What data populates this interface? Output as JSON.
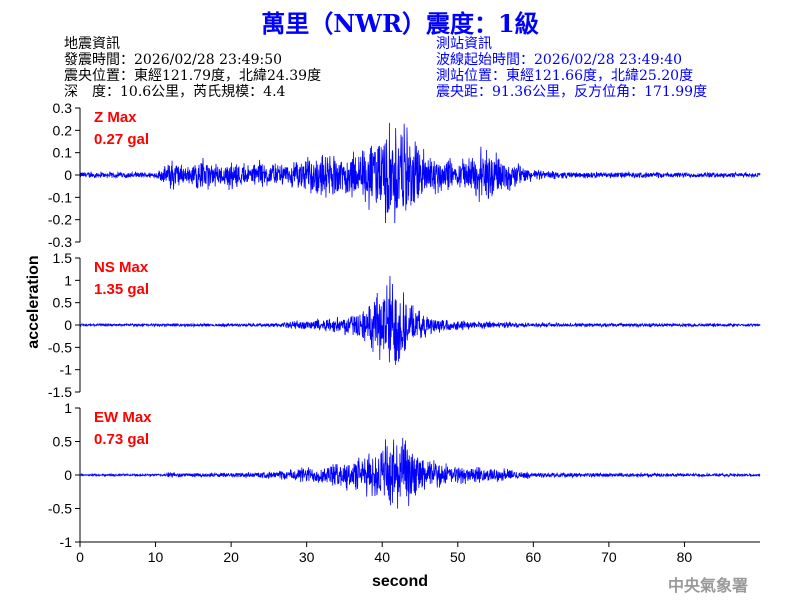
{
  "title": "萬里（NWR）震度：1級",
  "quake_info": {
    "heading": "地震資訊",
    "time": "發震時間：2026/02/28 23:49:50",
    "location": "震央位置：東經121.79度，北緯24.39度",
    "depth_magnitude": "深　度：10.6公里，芮氏規模：4.4"
  },
  "station_info": {
    "heading": "測站資訊",
    "wave_start": "波線起始時間：2026/02/28 23:49:40",
    "location": "測站位置：東經121.66度，北緯25.20度",
    "distance_azimuth": "震央距：91.36公里，反方位角：171.99度"
  },
  "agency": "中央氣象署",
  "chart_data": {
    "type": "line",
    "xlabel": "second",
    "ylabel": "acceleration",
    "xlim": [
      0,
      90
    ],
    "xticks": [
      0,
      10,
      20,
      30,
      40,
      50,
      60,
      70,
      80
    ],
    "line_color": "#0000ff",
    "label_color": "#ff0000",
    "panels": [
      {
        "name": "Z Max",
        "max_label": "0.27 gal",
        "ylim": [
          -0.3,
          0.3
        ],
        "yticks": [
          -0.3,
          -0.2,
          -0.1,
          0,
          0.1,
          0.2,
          0.3
        ],
        "envelope": [
          [
            0,
            0.015
          ],
          [
            10,
            0.015
          ],
          [
            11.5,
            0.05
          ],
          [
            12,
            0.09
          ],
          [
            14,
            0.04
          ],
          [
            16,
            0.08
          ],
          [
            18,
            0.05
          ],
          [
            20,
            0.07
          ],
          [
            22,
            0.05
          ],
          [
            24,
            0.07
          ],
          [
            26,
            0.05
          ],
          [
            28,
            0.06
          ],
          [
            30,
            0.09
          ],
          [
            33,
            0.11
          ],
          [
            36,
            0.1
          ],
          [
            38,
            0.15
          ],
          [
            40,
            0.2
          ],
          [
            42,
            0.27
          ],
          [
            44,
            0.18
          ],
          [
            46,
            0.12
          ],
          [
            48,
            0.09
          ],
          [
            50,
            0.06
          ],
          [
            52,
            0.1
          ],
          [
            54,
            0.15
          ],
          [
            56,
            0.08
          ],
          [
            58,
            0.06
          ],
          [
            60,
            0.025
          ],
          [
            65,
            0.015
          ],
          [
            90,
            0.012
          ]
        ]
      },
      {
        "name": "NS Max",
        "max_label": "1.35 gal",
        "ylim": [
          -1.5,
          1.5
        ],
        "yticks": [
          -1.5,
          -1,
          -0.5,
          0,
          0.5,
          1,
          1.5
        ],
        "envelope": [
          [
            0,
            0.03
          ],
          [
            25,
            0.04
          ],
          [
            28,
            0.09
          ],
          [
            32,
            0.15
          ],
          [
            36,
            0.25
          ],
          [
            38,
            0.45
          ],
          [
            40,
            0.85
          ],
          [
            41,
            1.35
          ],
          [
            42.5,
            0.95
          ],
          [
            44,
            0.45
          ],
          [
            46,
            0.25
          ],
          [
            48,
            0.15
          ],
          [
            52,
            0.1
          ],
          [
            56,
            0.07
          ],
          [
            60,
            0.05
          ],
          [
            90,
            0.03
          ]
        ]
      },
      {
        "name": "EW Max",
        "max_label": "0.73 gal",
        "ylim": [
          -1,
          1
        ],
        "yticks": [
          -1,
          -0.5,
          0,
          0.5,
          1
        ],
        "envelope": [
          [
            0,
            0.015
          ],
          [
            11,
            0.02
          ],
          [
            12,
            0.05
          ],
          [
            14,
            0.03
          ],
          [
            20,
            0.04
          ],
          [
            24,
            0.05
          ],
          [
            27,
            0.07
          ],
          [
            29,
            0.13
          ],
          [
            32,
            0.15
          ],
          [
            36,
            0.25
          ],
          [
            40,
            0.45
          ],
          [
            41,
            0.73
          ],
          [
            42,
            0.65
          ],
          [
            44,
            0.4
          ],
          [
            46,
            0.25
          ],
          [
            48,
            0.18
          ],
          [
            52,
            0.12
          ],
          [
            56,
            0.1
          ],
          [
            60,
            0.04
          ],
          [
            90,
            0.02
          ]
        ]
      }
    ]
  }
}
